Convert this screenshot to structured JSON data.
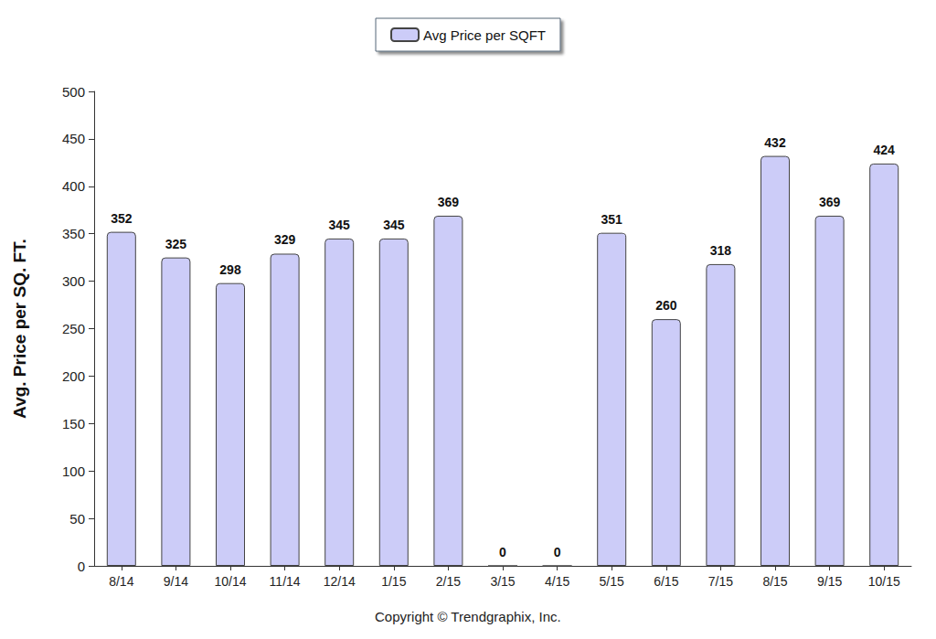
{
  "chart_data": {
    "type": "bar",
    "y_label": "Avg. Price per SQ. FT.",
    "annotations": [
      "Copyright © Trendgraphix, Inc."
    ],
    "categories": [
      "8/14",
      "9/14",
      "10/14",
      "11/14",
      "12/14",
      "1/15",
      "2/15",
      "3/15",
      "4/15",
      "5/15",
      "6/15",
      "7/15",
      "8/15",
      "9/15",
      "10/15"
    ],
    "series": [
      {
        "name": "Avg Price per SQFT",
        "color": "#ccccf8",
        "values": [
          352,
          325,
          298,
          329,
          345,
          345,
          369,
          0,
          0,
          351,
          260,
          318,
          432,
          369,
          424
        ]
      }
    ],
    "ylim": [
      0,
      500
    ],
    "yticks": [
      0,
      50,
      100,
      150,
      200,
      250,
      300,
      350,
      400,
      450,
      500
    ],
    "grid": false,
    "legend": "top",
    "data_labels": true
  }
}
